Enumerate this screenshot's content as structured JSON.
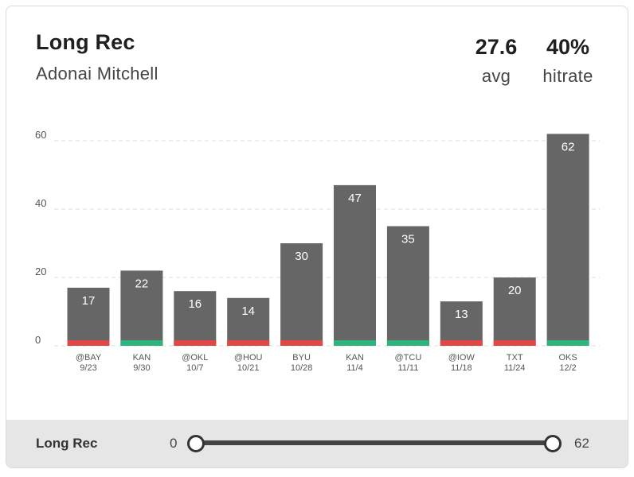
{
  "header": {
    "title": "Long Rec",
    "player": "Adonai Mitchell",
    "avg_value": "27.6",
    "avg_label": "avg",
    "hitrate_value": "40%",
    "hitrate_label": "hitrate"
  },
  "colors": {
    "bar": "#666666",
    "hit": "#2db47d",
    "miss": "#e04848",
    "grid": "#dddddd"
  },
  "chart_data": {
    "type": "bar",
    "categories": [
      {
        "opp": "@BAY",
        "date": "9/23"
      },
      {
        "opp": "KAN",
        "date": "9/30"
      },
      {
        "opp": "@OKL",
        "date": "10/7"
      },
      {
        "opp": "@HOU",
        "date": "10/21"
      },
      {
        "opp": "BYU",
        "date": "10/28"
      },
      {
        "opp": "KAN",
        "date": "11/4"
      },
      {
        "opp": "@TCU",
        "date": "11/11"
      },
      {
        "opp": "@IOW",
        "date": "11/18"
      },
      {
        "opp": "TXT",
        "date": "11/24"
      },
      {
        "opp": "OKS",
        "date": "12/2"
      }
    ],
    "values": [
      17,
      22,
      16,
      14,
      30,
      47,
      35,
      13,
      20,
      62
    ],
    "hit": [
      false,
      true,
      false,
      false,
      false,
      true,
      true,
      false,
      false,
      true
    ],
    "ylim": [
      0,
      62
    ],
    "yticks": [
      0,
      20,
      40,
      60
    ],
    "grid": true
  },
  "footer": {
    "label": "Long Rec",
    "range_min": "0",
    "range_max": "62"
  }
}
